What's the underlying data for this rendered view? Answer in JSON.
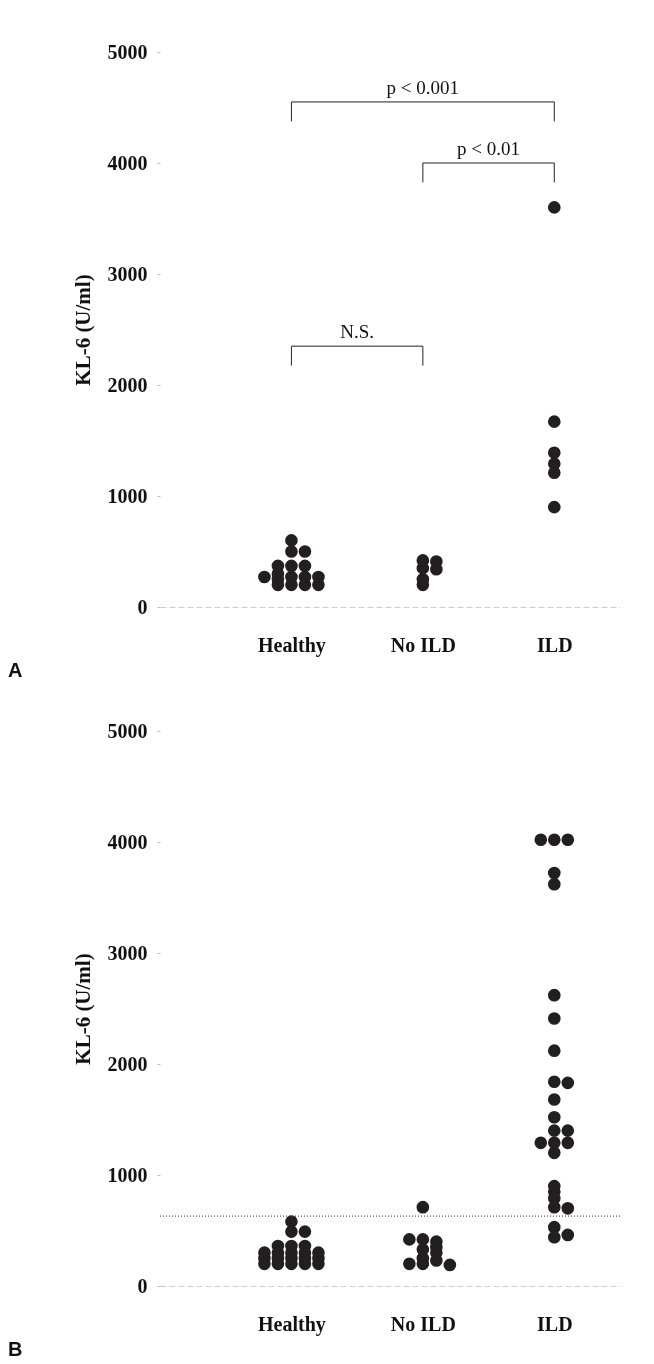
{
  "chart_data": [
    {
      "type": "scatter",
      "title": "A",
      "ylabel": "KL-6 (U/ml)",
      "categories": [
        "Healthy",
        "No ILD",
        "ILD"
      ],
      "ylim": [
        0,
        5000
      ],
      "yticks": [
        0,
        1000,
        2000,
        3000,
        4000,
        5000
      ],
      "marker": "circle",
      "series": [
        {
          "color": "#231f20",
          "x": [
            "Healthy",
            "Healthy",
            "Healthy",
            "Healthy",
            "Healthy",
            "Healthy",
            "Healthy",
            "Healthy",
            "Healthy",
            "Healthy",
            "Healthy",
            "Healthy",
            "Healthy",
            "Healthy",
            "Healthy",
            "Healthy",
            "No ILD",
            "No ILD",
            "No ILD",
            "No ILD",
            "No ILD",
            "No ILD",
            "ILD",
            "ILD",
            "ILD",
            "ILD",
            "ILD",
            "ILD"
          ],
          "values": [
            600,
            500,
            500,
            370,
            370,
            370,
            270,
            270,
            300,
            270,
            270,
            200,
            200,
            250,
            200,
            200,
            350,
            420,
            410,
            340,
            250,
            200,
            3600,
            1670,
            1390,
            1290,
            1210,
            900
          ]
        }
      ],
      "annotations": [
        "p < 0.001",
        "p < 0.01",
        "N.S."
      ]
    },
    {
      "type": "scatter",
      "title": "B",
      "ylabel": "KL-6 (U/ml)",
      "categories": [
        "Healthy",
        "No ILD",
        "ILD"
      ],
      "ylim": [
        0,
        5000
      ],
      "yticks": [
        0,
        1000,
        2000,
        3000,
        4000,
        5000
      ],
      "marker": "circle",
      "series": [
        {
          "color": "#231f20",
          "x": [
            "Healthy",
            "Healthy",
            "Healthy",
            "Healthy",
            "Healthy",
            "Healthy",
            "Healthy",
            "Healthy",
            "Healthy",
            "Healthy",
            "Healthy",
            "Healthy",
            "Healthy",
            "Healthy",
            "Healthy",
            "Healthy",
            "Healthy",
            "Healthy",
            "Healthy",
            "Healthy",
            "Healthy",
            "No ILD",
            "No ILD",
            "No ILD",
            "No ILD",
            "No ILD",
            "No ILD",
            "No ILD",
            "No ILD",
            "No ILD",
            "No ILD",
            "No ILD",
            "No ILD",
            "ILD",
            "ILD",
            "ILD",
            "ILD",
            "ILD",
            "ILD",
            "ILD",
            "ILD",
            "ILD",
            "ILD",
            "ILD",
            "ILD",
            "ILD",
            "ILD",
            "ILD",
            "ILD",
            "ILD",
            "ILD",
            "ILD",
            "ILD",
            "ILD",
            "ILD",
            "ILD",
            "ILD",
            "ILD",
            "ILD"
          ],
          "values": [
            580,
            490,
            490,
            360,
            360,
            360,
            300,
            300,
            300,
            300,
            300,
            250,
            250,
            250,
            250,
            250,
            200,
            200,
            200,
            200,
            200,
            710,
            420,
            400,
            420,
            330,
            350,
            250,
            300,
            230,
            200,
            200,
            190,
            4020,
            4020,
            4020,
            3720,
            3620,
            2620,
            2410,
            2120,
            1840,
            1830,
            1680,
            1520,
            1400,
            1400,
            1290,
            1290,
            1290,
            1200,
            900,
            850,
            790,
            710,
            700,
            530,
            440,
            460
          ]
        }
      ],
      "ref_lines": [
        {
          "axis": "y",
          "value": 630,
          "line_style": "dotted",
          "color": "#555555"
        }
      ]
    }
  ]
}
